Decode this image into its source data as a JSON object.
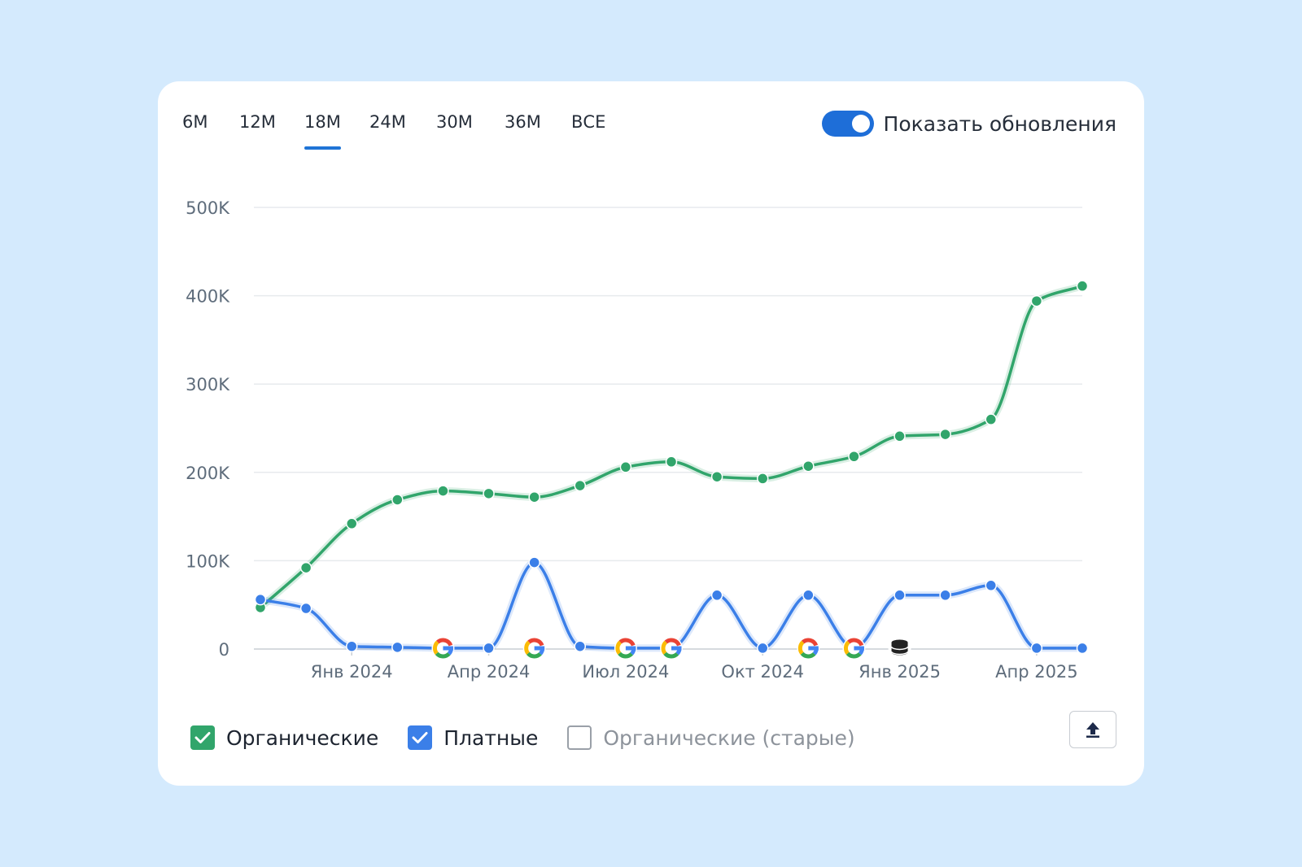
{
  "tabs": [
    {
      "label": "6M"
    },
    {
      "label": "12M"
    },
    {
      "label": "18M",
      "active": true
    },
    {
      "label": "24M"
    },
    {
      "label": "30M"
    },
    {
      "label": "36M"
    },
    {
      "label": "ВСЕ"
    }
  ],
  "toggle": {
    "label": "Показать обновления",
    "on": true,
    "color": "#1e6ed8"
  },
  "legend": [
    {
      "label": "Органические",
      "checked": true,
      "color": "#31a56b"
    },
    {
      "label": "Платные",
      "checked": true,
      "color": "#3b7fe8"
    },
    {
      "label": "Органические (старые)",
      "checked": false,
      "color": "#9aa0a8"
    }
  ],
  "export_button": {
    "icon": "upload-icon"
  },
  "chart_data": {
    "type": "line",
    "ylim": [
      0,
      500000
    ],
    "y_ticks": [
      {
        "value": 0,
        "label": "0"
      },
      {
        "value": 100000,
        "label": "100K"
      },
      {
        "value": 200000,
        "label": "200K"
      },
      {
        "value": 300000,
        "label": "300K"
      },
      {
        "value": 400000,
        "label": "400K"
      },
      {
        "value": 500000,
        "label": "500K"
      }
    ],
    "x": [
      "2023-11-01",
      "2023-12-01",
      "2024-01-01",
      "2024-02-01",
      "2024-03-01",
      "2024-04-01",
      "2024-05-01",
      "2024-06-01",
      "2024-07-01",
      "2024-08-01",
      "2024-09-01",
      "2024-10-01",
      "2024-11-01",
      "2024-12-01",
      "2025-01-01",
      "2025-02-01",
      "2025-03-01",
      "2025-04-01",
      "2025-05-01"
    ],
    "x_ticks": [
      {
        "x": "2024-01-01",
        "label": "Янв 2024"
      },
      {
        "x": "2024-04-01",
        "label": "Апр 2024"
      },
      {
        "x": "2024-07-01",
        "label": "Июл 2024"
      },
      {
        "x": "2024-10-01",
        "label": "Окт 2024"
      },
      {
        "x": "2025-01-01",
        "label": "Янв 2025"
      },
      {
        "x": "2025-04-01",
        "label": "Апр 2025"
      }
    ],
    "series": [
      {
        "name": "Органические",
        "color": "#31a56b",
        "values": [
          47000,
          92000,
          142000,
          169000,
          179000,
          176000,
          172000,
          185000,
          206000,
          212000,
          195000,
          193000,
          207000,
          218000,
          241000,
          243000,
          260000,
          394000,
          411000
        ]
      },
      {
        "name": "Платные",
        "color": "#3b7fe8",
        "values": [
          56000,
          46000,
          3000,
          2000,
          1000,
          1000,
          98000,
          3000,
          1000,
          1000,
          61000,
          1000,
          61000,
          1000,
          61000,
          61000,
          72000,
          1000,
          1000
        ]
      }
    ],
    "update_markers": [
      {
        "x": "2024-03-01",
        "icon": "google-icon"
      },
      {
        "x": "2024-05-01",
        "icon": "google-icon"
      },
      {
        "x": "2024-07-01",
        "icon": "google-icon"
      },
      {
        "x": "2024-08-01",
        "icon": "google-icon"
      },
      {
        "x": "2024-11-01",
        "icon": "google-icon"
      },
      {
        "x": "2024-12-01",
        "icon": "google-icon"
      },
      {
        "x": "2025-01-01",
        "icon": "database-icon"
      }
    ],
    "grid": true
  }
}
